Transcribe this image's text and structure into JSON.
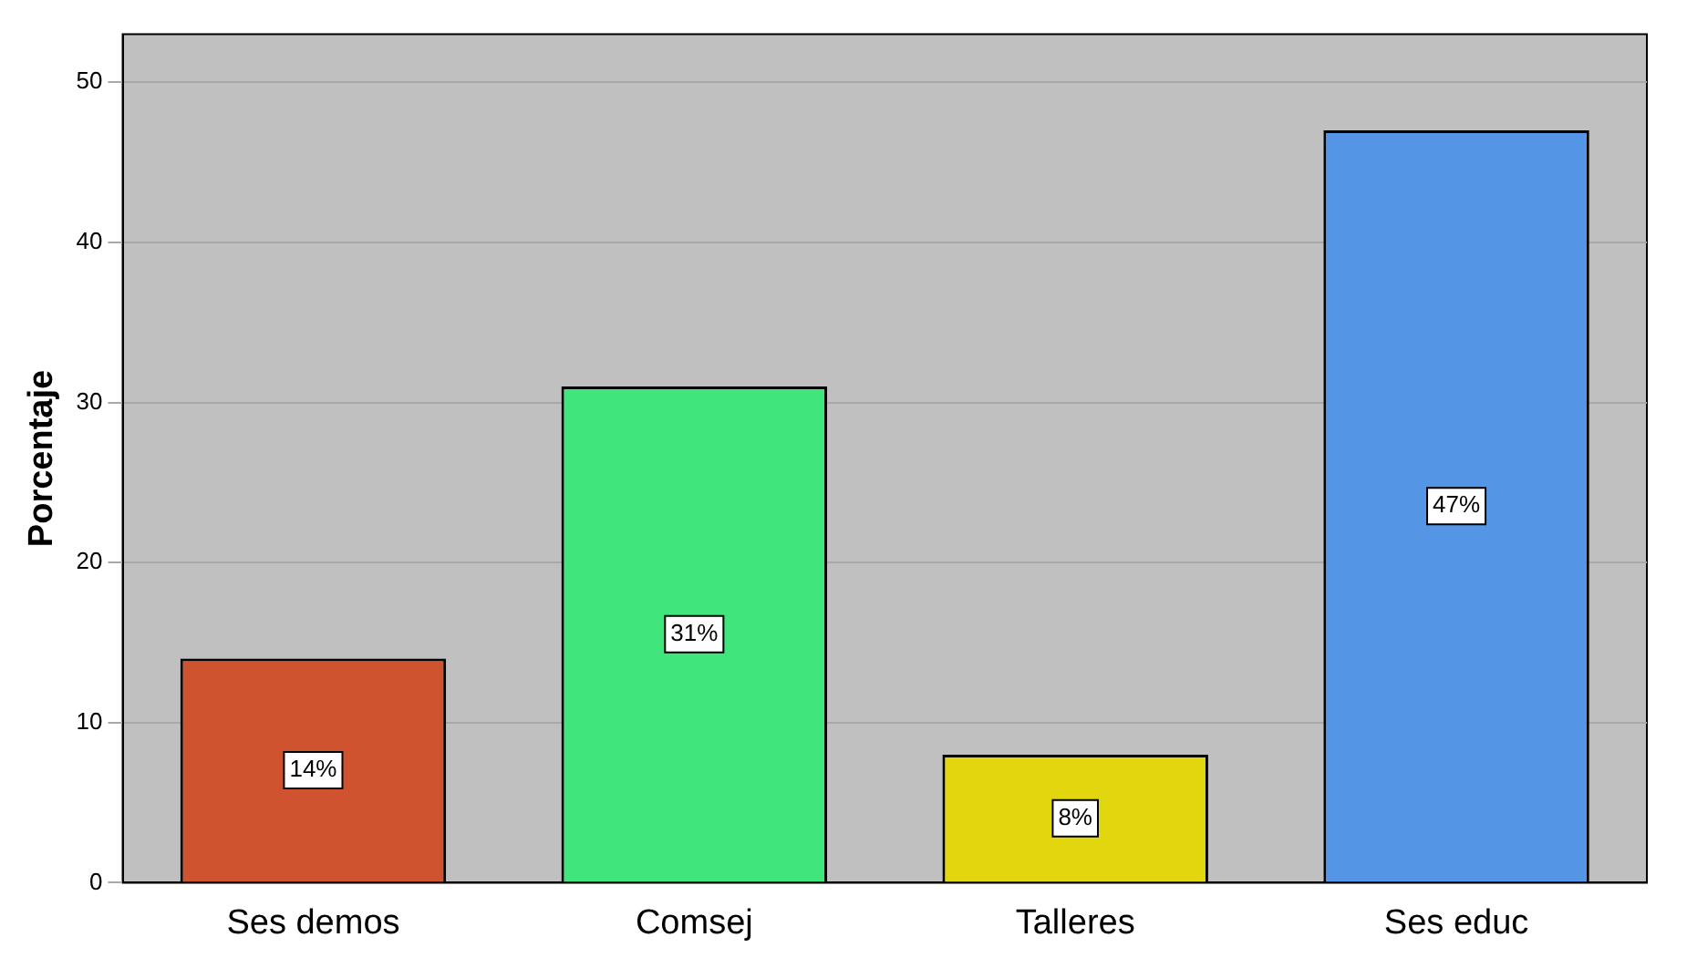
{
  "chart_data": {
    "type": "bar",
    "ylabel": "Porcentaje",
    "categories": [
      "Ses demos",
      "Comsej",
      "Talleres",
      "Ses educ"
    ],
    "values": [
      14,
      31,
      8,
      47
    ],
    "colors": [
      "#d0532f",
      "#40e57c",
      "#e2d60e",
      "#5595e5"
    ],
    "value_labels": [
      "14%",
      "31%",
      "8%",
      "47%"
    ],
    "ylim": [
      0,
      53
    ],
    "yticks": [
      0,
      10,
      20,
      30,
      40,
      50
    ],
    "grid": "y"
  }
}
